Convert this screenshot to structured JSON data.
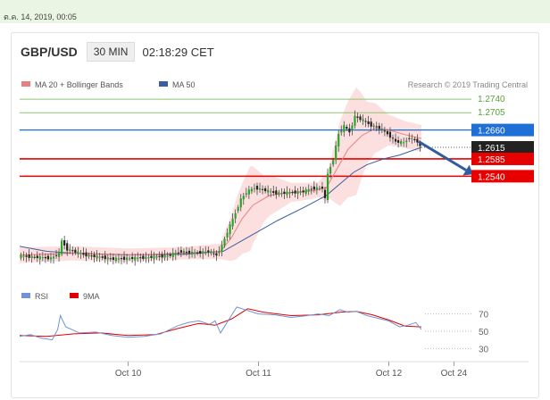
{
  "page": {
    "date_text": "ต.ค. 14, 2019, 00:05"
  },
  "header": {
    "symbol": "GBP/USD",
    "timeframe": "30 MIN",
    "time": "02:18:29 CET"
  },
  "colors": {
    "ma20": "#e98080",
    "ma50": "#3a5fa0",
    "boll": "#fbd9d9",
    "green_level": "#8ec56d",
    "resist_blue": "#1e6fd6",
    "red": "#e60000",
    "close": "#222222",
    "arrow": "#2f5d9e",
    "rsi": "#6f93d6",
    "ma9": "#e00000"
  },
  "chart_data": [
    {
      "type": "candlestick",
      "legend": [
        {
          "name": "MA 20 + Bollinger Bands",
          "color": "#e98080"
        },
        {
          "name": "MA 50",
          "color": "#3a5fa0"
        }
      ],
      "credit": "Research © 2019 Trading Central",
      "ylim": [
        1.2265,
        1.2775
      ],
      "x_ticks": [
        {
          "label": "Oct 10",
          "index": 40
        },
        {
          "label": "Oct 11",
          "index": 88
        },
        {
          "label": "Oct 12",
          "index": 136
        },
        {
          "label": "Oct 24",
          "index": 160
        }
      ],
      "levels": [
        {
          "label": "1.2740",
          "value": 1.274,
          "style": "green"
        },
        {
          "label": "1.2705",
          "value": 1.2705,
          "style": "green"
        },
        {
          "label": "1.2660",
          "value": 1.266,
          "style": "resistance"
        },
        {
          "label": "1.2615",
          "value": 1.2615,
          "style": "close"
        },
        {
          "label": "1.2585",
          "value": 1.2585,
          "style": "support"
        },
        {
          "label": "1.2540",
          "value": 1.254,
          "style": "support"
        }
      ],
      "close_price": 1.2615,
      "forecast_arrow": {
        "from_index": 147,
        "from_value": 1.263,
        "to_index": 167,
        "to_value": 1.2545
      },
      "keypoints": [
        [
          0,
          1.2333
        ],
        [
          12,
          1.2327
        ],
        [
          15,
          1.234
        ],
        [
          16,
          1.2372
        ],
        [
          18,
          1.235
        ],
        [
          25,
          1.2335
        ],
        [
          35,
          1.2325
        ],
        [
          45,
          1.2328
        ],
        [
          55,
          1.2333
        ],
        [
          60,
          1.2345
        ],
        [
          65,
          1.234
        ],
        [
          70,
          1.2345
        ],
        [
          73,
          1.2335
        ],
        [
          75,
          1.236
        ],
        [
          77,
          1.2395
        ],
        [
          80,
          1.2445
        ],
        [
          82,
          1.248
        ],
        [
          84,
          1.2498
        ],
        [
          87,
          1.251
        ],
        [
          90,
          1.2505
        ],
        [
          95,
          1.2496
        ],
        [
          100,
          1.2497
        ],
        [
          105,
          1.25
        ],
        [
          108,
          1.2508
        ],
        [
          112,
          1.251
        ],
        [
          113,
          1.248
        ],
        [
          114,
          1.2545
        ],
        [
          116,
          1.2585
        ],
        [
          118,
          1.265
        ],
        [
          120,
          1.267
        ],
        [
          122,
          1.2655
        ],
        [
          124,
          1.2695
        ],
        [
          127,
          1.2685
        ],
        [
          130,
          1.2672
        ],
        [
          133,
          1.2665
        ],
        [
          136,
          1.265
        ],
        [
          139,
          1.263
        ],
        [
          142,
          1.2627
        ],
        [
          144,
          1.264
        ],
        [
          147,
          1.263
        ],
        [
          148,
          1.2615
        ]
      ],
      "ma20_points": [
        [
          0,
          1.2335
        ],
        [
          20,
          1.234
        ],
        [
          40,
          1.2335
        ],
        [
          60,
          1.234
        ],
        [
          74,
          1.2345
        ],
        [
          78,
          1.238
        ],
        [
          82,
          1.243
        ],
        [
          86,
          1.2465
        ],
        [
          92,
          1.249
        ],
        [
          100,
          1.2498
        ],
        [
          108,
          1.2502
        ],
        [
          113,
          1.251
        ],
        [
          117,
          1.256
        ],
        [
          121,
          1.261
        ],
        [
          126,
          1.2645
        ],
        [
          131,
          1.2665
        ],
        [
          136,
          1.266
        ],
        [
          142,
          1.2648
        ],
        [
          148,
          1.2638
        ]
      ],
      "ma50_points": [
        [
          0,
          1.2358
        ],
        [
          10,
          1.2345
        ],
        [
          20,
          1.234
        ],
        [
          40,
          1.2336
        ],
        [
          60,
          1.2337
        ],
        [
          75,
          1.2345
        ],
        [
          85,
          1.2385
        ],
        [
          95,
          1.2425
        ],
        [
          105,
          1.246
        ],
        [
          113,
          1.249
        ],
        [
          118,
          1.252
        ],
        [
          123,
          1.255
        ],
        [
          128,
          1.257
        ],
        [
          134,
          1.2585
        ],
        [
          140,
          1.2595
        ],
        [
          148,
          1.2615
        ]
      ],
      "boll_width_points": [
        [
          0,
          0.002
        ],
        [
          30,
          0.0018
        ],
        [
          60,
          0.0016
        ],
        [
          74,
          0.002
        ],
        [
          80,
          0.008
        ],
        [
          85,
          0.011
        ],
        [
          90,
          0.006
        ],
        [
          100,
          0.0025
        ],
        [
          110,
          0.002
        ],
        [
          114,
          0.004
        ],
        [
          118,
          0.011
        ],
        [
          124,
          0.014
        ],
        [
          128,
          0.008
        ],
        [
          136,
          0.004
        ],
        [
          142,
          0.0035
        ],
        [
          148,
          0.0035
        ]
      ]
    },
    {
      "type": "line",
      "legend": [
        {
          "name": "RSI",
          "color": "#6f93d6"
        },
        {
          "name": "9MA",
          "color": "#e00000"
        }
      ],
      "ylim": [
        20,
        82
      ],
      "y_ticks": [
        70,
        50,
        30
      ],
      "rsi_points": [
        [
          0,
          44
        ],
        [
          4,
          46
        ],
        [
          8,
          42
        ],
        [
          12,
          40
        ],
        [
          14,
          52
        ],
        [
          15,
          68
        ],
        [
          17,
          55
        ],
        [
          22,
          48
        ],
        [
          28,
          49
        ],
        [
          34,
          45
        ],
        [
          40,
          43
        ],
        [
          46,
          44
        ],
        [
          52,
          47
        ],
        [
          58,
          56
        ],
        [
          62,
          60
        ],
        [
          66,
          62
        ],
        [
          70,
          58
        ],
        [
          72,
          62
        ],
        [
          74,
          48
        ],
        [
          76,
          58
        ],
        [
          80,
          78
        ],
        [
          83,
          75
        ],
        [
          88,
          70
        ],
        [
          94,
          69
        ],
        [
          100,
          66
        ],
        [
          106,
          68
        ],
        [
          110,
          70
        ],
        [
          114,
          68
        ],
        [
          118,
          75
        ],
        [
          121,
          72
        ],
        [
          124,
          73
        ],
        [
          128,
          68
        ],
        [
          132,
          65
        ],
        [
          136,
          62
        ],
        [
          140,
          55
        ],
        [
          143,
          57
        ],
        [
          146,
          60
        ],
        [
          148,
          52
        ]
      ],
      "ma9_points": [
        [
          0,
          45
        ],
        [
          10,
          44
        ],
        [
          20,
          47
        ],
        [
          30,
          48
        ],
        [
          40,
          45
        ],
        [
          50,
          46
        ],
        [
          58,
          53
        ],
        [
          66,
          59
        ],
        [
          72,
          57
        ],
        [
          78,
          64
        ],
        [
          84,
          76
        ],
        [
          90,
          72
        ],
        [
          100,
          68
        ],
        [
          110,
          69
        ],
        [
          118,
          72
        ],
        [
          124,
          73
        ],
        [
          130,
          69
        ],
        [
          136,
          63
        ],
        [
          142,
          56
        ],
        [
          148,
          55
        ]
      ]
    }
  ]
}
